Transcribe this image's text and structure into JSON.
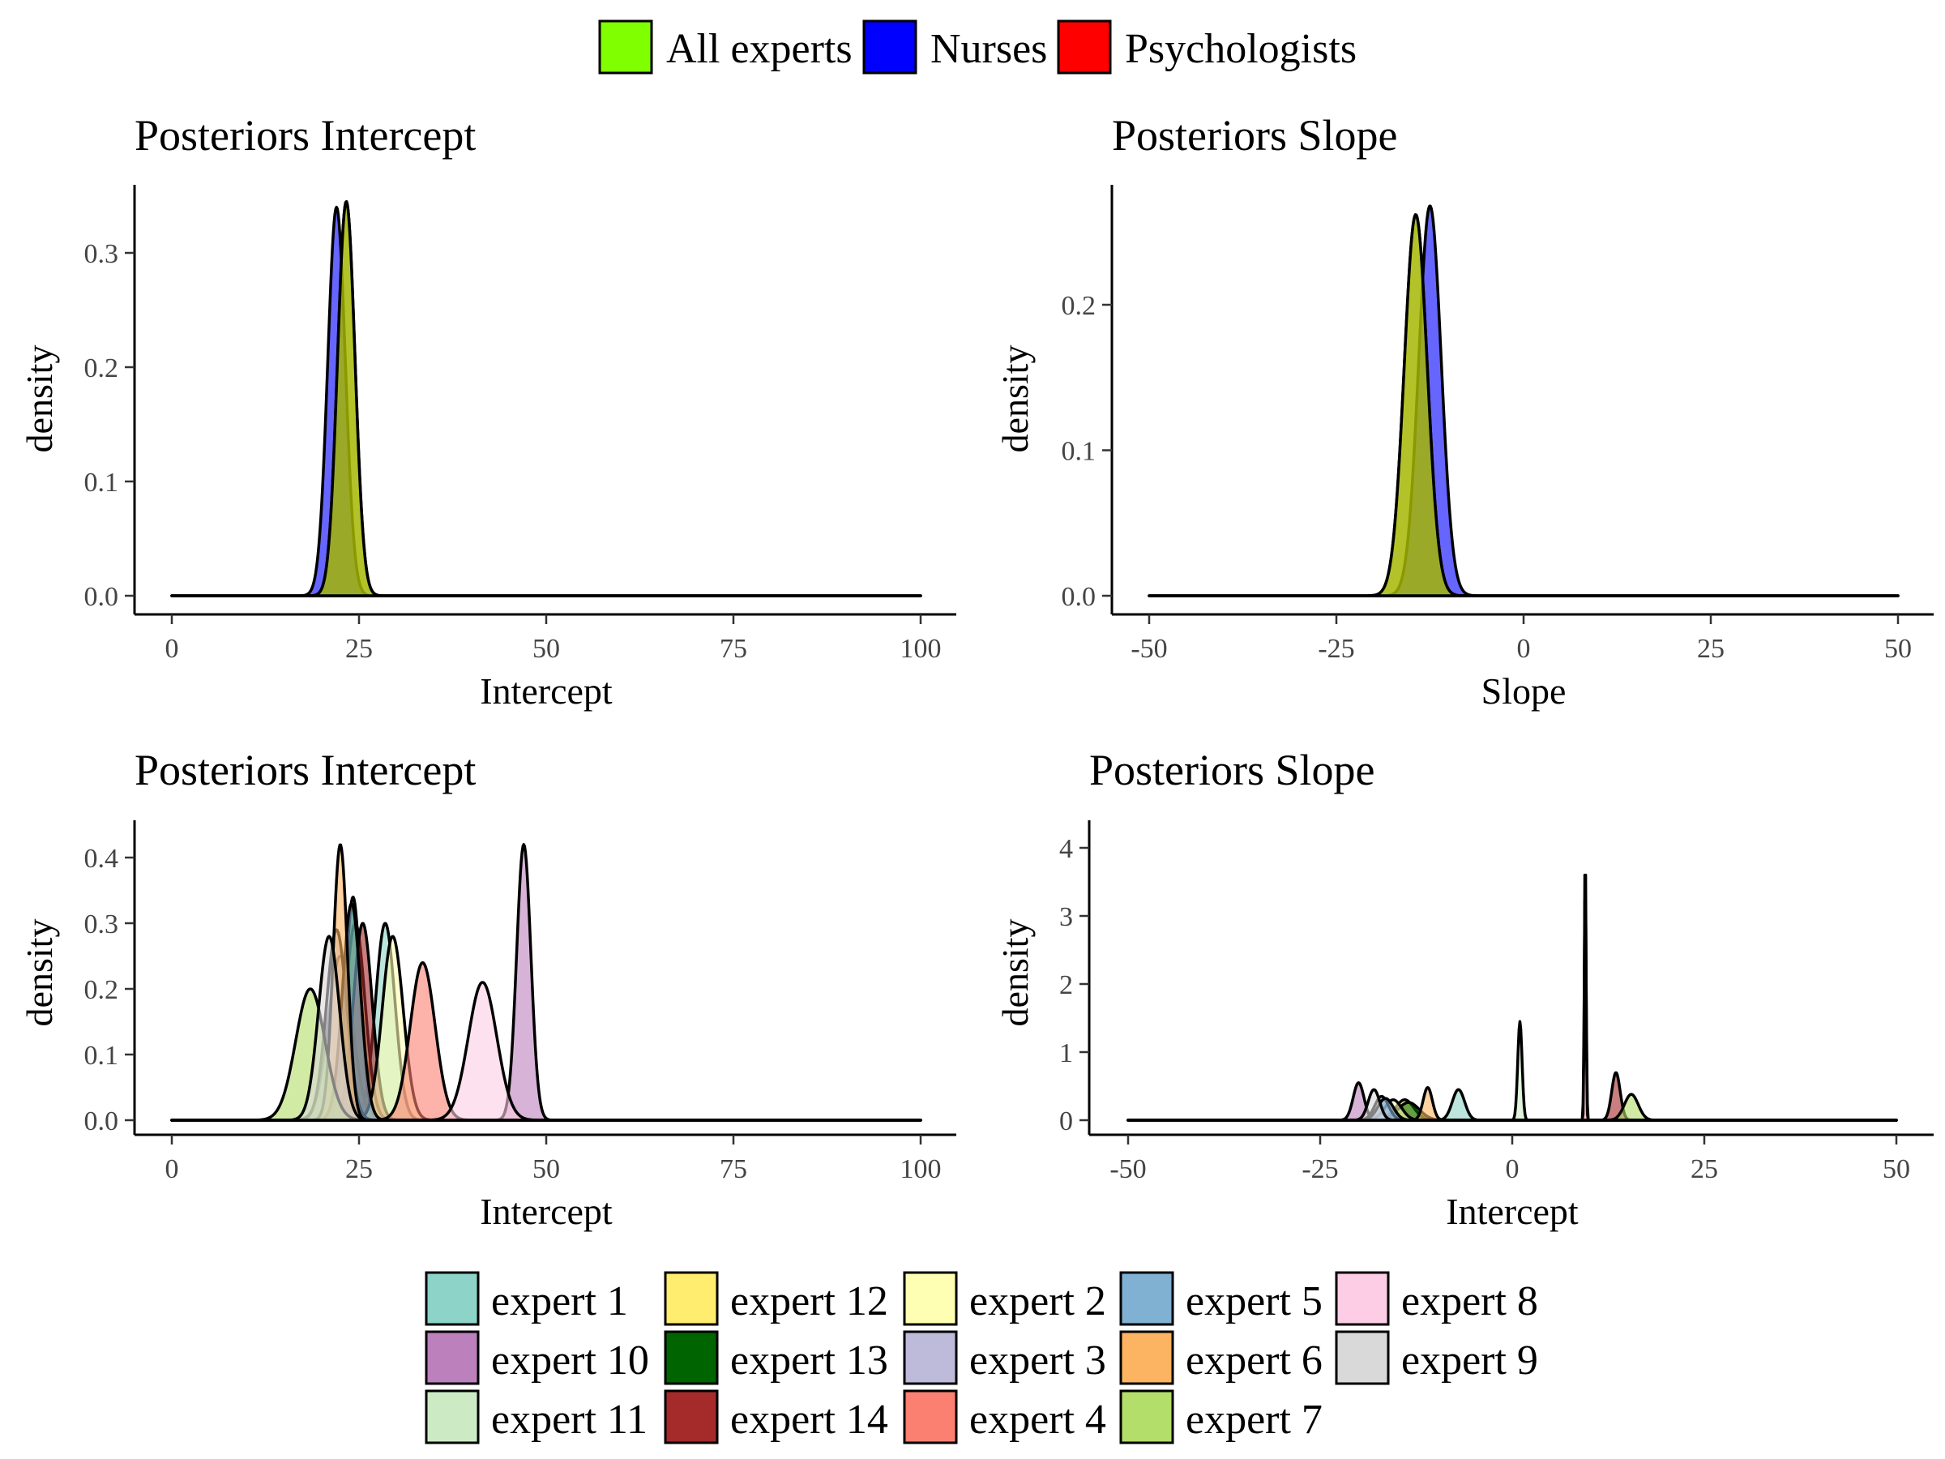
{
  "chart_data": [
    {
      "type": "area",
      "title": "Posteriors Intercept",
      "xlabel": "Intercept",
      "ylabel": "density",
      "xlim": [
        0,
        100
      ],
      "ylim": [
        0,
        0.36
      ],
      "xticks": [
        0,
        25,
        50,
        75,
        100
      ],
      "xticklabels": [
        "0",
        "25",
        "50",
        "75",
        "100"
      ],
      "yticks": [
        0.0,
        0.1,
        0.2,
        0.3
      ],
      "yticklabels": [
        "0.0",
        "0.1",
        "0.2",
        "0.3"
      ],
      "grid": false,
      "legend": "top",
      "series": [
        {
          "name": "Nurses",
          "color": "#0000ff",
          "mean": 22.0,
          "sd": 1.17,
          "peak": 0.34
        },
        {
          "name": "Psychologists",
          "color": "#ff0000",
          "mean": 23.3,
          "sd": 1.16,
          "peak": 0.345
        },
        {
          "name": "All experts",
          "color": "#80ff00",
          "mean": 23.3,
          "sd": 1.16,
          "peak": 0.345
        }
      ]
    },
    {
      "type": "area",
      "title": "Posteriors Slope",
      "xlabel": "Slope",
      "ylabel": "density",
      "xlim": [
        -50,
        50
      ],
      "ylim": [
        0,
        0.28
      ],
      "xticks": [
        -50,
        -25,
        0,
        25,
        50
      ],
      "xticklabels": [
        "-50",
        "-25",
        "0",
        "25",
        "50"
      ],
      "yticks": [
        0.0,
        0.1,
        0.2
      ],
      "yticklabels": [
        "0.0",
        "0.1",
        "0.2"
      ],
      "grid": false,
      "legend": "top",
      "series": [
        {
          "name": "Nurses",
          "color": "#0000ff",
          "mean": -12.5,
          "sd": 1.5,
          "peak": 0.268
        },
        {
          "name": "Psychologists",
          "color": "#ff0000",
          "mean": -14.4,
          "sd": 1.53,
          "peak": 0.262
        },
        {
          "name": "All experts",
          "color": "#80ff00",
          "mean": -14.4,
          "sd": 1.53,
          "peak": 0.262
        }
      ]
    },
    {
      "type": "area",
      "title": "Posteriors Intercept",
      "xlabel": "Intercept",
      "ylabel": "density",
      "xlim": [
        0,
        100
      ],
      "ylim": [
        0,
        0.44
      ],
      "xticks": [
        0,
        25,
        50,
        75,
        100
      ],
      "xticklabels": [
        "0",
        "25",
        "50",
        "75",
        "100"
      ],
      "yticks": [
        0.0,
        0.1,
        0.2,
        0.3,
        0.4
      ],
      "yticklabels": [
        "0.0",
        "0.1",
        "0.2",
        "0.3",
        "0.4"
      ],
      "grid": false,
      "legend": "bottom",
      "series": [
        {
          "name": "expert 1",
          "color": "#8dd3c7",
          "mean": 28.5,
          "sd": 1.3,
          "peak": 0.3
        },
        {
          "name": "expert 10",
          "color": "#bc80bd",
          "mean": 47.0,
          "sd": 0.95,
          "peak": 0.42
        },
        {
          "name": "expert 11",
          "color": "#ccebc5",
          "mean": 22.5,
          "sd": 1.6,
          "peak": 0.25
        },
        {
          "name": "expert 12",
          "color": "#ffed6f",
          "mean": 24.5,
          "sd": 1.3,
          "peak": 0.3
        },
        {
          "name": "expert 13",
          "color": "#006400",
          "mean": 24.2,
          "sd": 1.0,
          "peak": 0.34
        },
        {
          "name": "expert 14",
          "color": "#a52a2a",
          "mean": 25.5,
          "sd": 1.25,
          "peak": 0.3
        },
        {
          "name": "expert 2",
          "color": "#ffffb3",
          "mean": 29.5,
          "sd": 1.4,
          "peak": 0.28
        },
        {
          "name": "expert 3",
          "color": "#bebada",
          "mean": 22.0,
          "sd": 1.35,
          "peak": 0.29
        },
        {
          "name": "expert 4",
          "color": "#fb8072",
          "mean": 33.5,
          "sd": 1.65,
          "peak": 0.24
        },
        {
          "name": "expert 5",
          "color": "#80b1d3",
          "mean": 24.0,
          "sd": 1.2,
          "peak": 0.33
        },
        {
          "name": "expert 6",
          "color": "#fdb462",
          "mean": 22.5,
          "sd": 0.95,
          "peak": 0.42
        },
        {
          "name": "expert 7",
          "color": "#b3de69",
          "mean": 18.5,
          "sd": 1.95,
          "peak": 0.2
        },
        {
          "name": "expert 8",
          "color": "#fccde5",
          "mean": 41.5,
          "sd": 1.9,
          "peak": 0.21
        },
        {
          "name": "expert 9",
          "color": "#d9d9d9",
          "mean": 21.0,
          "sd": 1.4,
          "peak": 0.28
        }
      ]
    },
    {
      "type": "area",
      "title": "Posteriors Slope",
      "xlabel": "Intercept",
      "ylabel": "density",
      "xlim": [
        -50,
        50
      ],
      "ylim": [
        0,
        4.3
      ],
      "xticks": [
        -50,
        -25,
        0,
        25,
        50
      ],
      "xticklabels": [
        "-50",
        "-25",
        "0",
        "25",
        "50"
      ],
      "yticks": [
        0,
        1,
        2,
        3,
        4
      ],
      "yticklabels": [
        "0",
        "1",
        "2",
        "3",
        "4"
      ],
      "grid": false,
      "legend": "bottom",
      "series": [
        {
          "name": "expert 1",
          "color": "#8dd3c7",
          "mean": -7.0,
          "sd": 0.8,
          "peak": 0.45
        },
        {
          "name": "expert 10",
          "color": "#bc80bd",
          "mean": -20.0,
          "sd": 0.7,
          "peak": 0.55
        },
        {
          "name": "expert 11",
          "color": "#ccebc5",
          "mean": 1.0,
          "sd": 0.28,
          "peak": 1.45
        },
        {
          "name": "expert 12",
          "color": "#ffed6f",
          "mean": -14.0,
          "sd": 1.2,
          "peak": 0.3
        },
        {
          "name": "expert 13",
          "color": "#006400",
          "mean": -13.5,
          "sd": 1.4,
          "peak": 0.26
        },
        {
          "name": "expert 14",
          "color": "#a52a2a",
          "mean": 13.5,
          "sd": 0.55,
          "peak": 0.7
        },
        {
          "name": "expert 2",
          "color": "#ffffb3",
          "mean": -15.5,
          "sd": 1.1,
          "peak": 0.3
        },
        {
          "name": "expert 3",
          "color": "#bebada",
          "mean": -17.0,
          "sd": 0.9,
          "peak": 0.35
        },
        {
          "name": "expert 4",
          "color": "#fb8072",
          "mean": 9.5,
          "sd": 0.12,
          "peak": 3.6
        },
        {
          "name": "expert 5",
          "color": "#80b1d3",
          "mean": -16.5,
          "sd": 1.0,
          "peak": 0.32
        },
        {
          "name": "expert 6",
          "color": "#fdb462",
          "mean": -11.0,
          "sd": 0.6,
          "peak": 0.48
        },
        {
          "name": "expert 7",
          "color": "#b3de69",
          "mean": 15.5,
          "sd": 0.9,
          "peak": 0.38
        },
        {
          "name": "expert 8",
          "color": "#fccde5",
          "mean": 9.5,
          "sd": 0.1,
          "peak": 4.2
        },
        {
          "name": "expert 9",
          "color": "#d9d9d9",
          "mean": -18.0,
          "sd": 0.75,
          "peak": 0.45
        }
      ]
    }
  ],
  "legend_top": [
    {
      "label": "All experts",
      "color": "#80ff00"
    },
    {
      "label": "Nurses",
      "color": "#0000ff"
    },
    {
      "label": "Psychologists",
      "color": "#ff0000"
    }
  ],
  "legend_bottom": [
    {
      "label": "expert 1",
      "color": "#8dd3c7"
    },
    {
      "label": "expert 10",
      "color": "#bc80bd"
    },
    {
      "label": "expert 11",
      "color": "#ccebc5"
    },
    {
      "label": "expert 12",
      "color": "#ffed6f"
    },
    {
      "label": "expert 13",
      "color": "#006400"
    },
    {
      "label": "expert 14",
      "color": "#a52a2a"
    },
    {
      "label": "expert 2",
      "color": "#ffffb3"
    },
    {
      "label": "expert 3",
      "color": "#bebada"
    },
    {
      "label": "expert 4",
      "color": "#fb8072"
    },
    {
      "label": "expert 5",
      "color": "#80b1d3"
    },
    {
      "label": "expert 6",
      "color": "#fdb462"
    },
    {
      "label": "expert 7",
      "color": "#b3de69"
    },
    {
      "label": "expert 8",
      "color": "#fccde5"
    },
    {
      "label": "expert 9",
      "color": "#d9d9d9"
    }
  ]
}
